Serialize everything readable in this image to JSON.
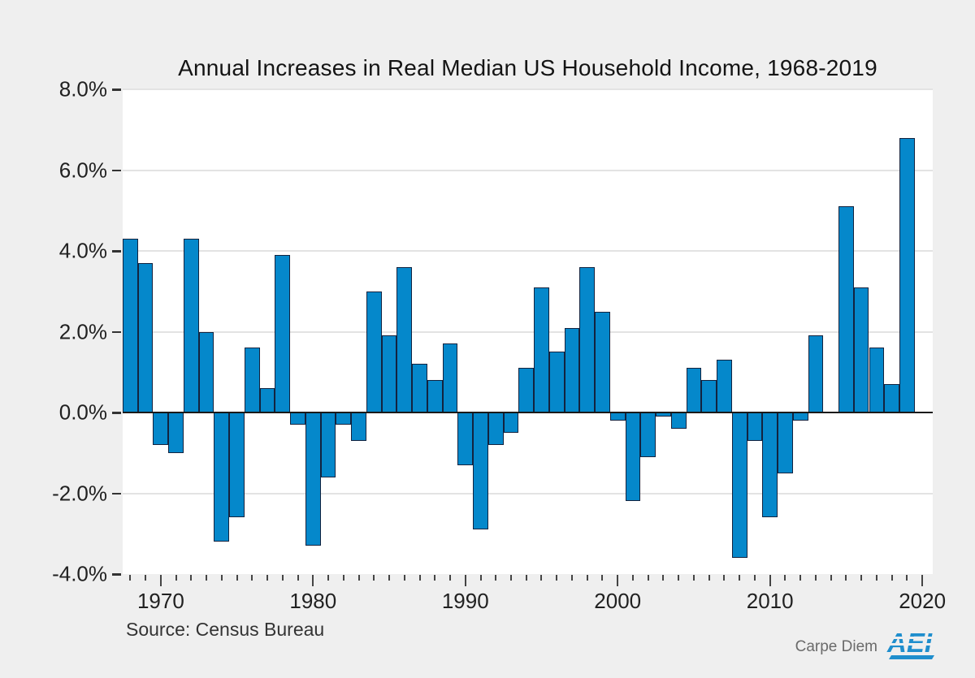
{
  "title": "Annual Increases in Real Median US Household Income, 1968-2019",
  "source": "Source: Census Bureau",
  "branding": {
    "carpe_diem": "Carpe Diem",
    "aei": "AEI"
  },
  "colors": {
    "background": "#efefef",
    "plot_background": "#ffffff",
    "bar_fill": "#0588cb",
    "bar_border": "#13233f",
    "gridline": "#e3e3e3",
    "zero_line": "#1a1a1a",
    "tick": "#333333",
    "aei_blue": "#1f8ecd",
    "carpe_gray": "#6b6b6b"
  },
  "chart_data": {
    "type": "bar",
    "title": "Annual Increases in Real Median US Household Income, 1968-2019",
    "xlabel": "",
    "ylabel": "",
    "ylim": [
      -4.0,
      8.0
    ],
    "grid": true,
    "legend_position": "none",
    "yticks": [
      8,
      6,
      4,
      2,
      0,
      -2,
      -4
    ],
    "ytick_labels": [
      "8.0%",
      "6.0%",
      "4.0%",
      "2.0%",
      "0.0%",
      "-2.0%",
      "-4.0%"
    ],
    "xtick_years_labeled": [
      1970,
      1980,
      1990,
      2000,
      2010,
      2020
    ],
    "xtick_labels": [
      "1970",
      "1980",
      "1990",
      "2000",
      "2010",
      "2020"
    ],
    "x": [
      1968,
      1969,
      1970,
      1971,
      1972,
      1973,
      1974,
      1975,
      1976,
      1977,
      1978,
      1979,
      1980,
      1981,
      1982,
      1983,
      1984,
      1985,
      1986,
      1987,
      1988,
      1989,
      1990,
      1991,
      1992,
      1993,
      1994,
      1995,
      1996,
      1997,
      1998,
      1999,
      2000,
      2001,
      2002,
      2003,
      2004,
      2005,
      2006,
      2007,
      2008,
      2009,
      2010,
      2011,
      2012,
      2013,
      2014,
      2015,
      2016,
      2017,
      2018,
      2019
    ],
    "values": [
      4.3,
      3.7,
      -0.8,
      -1.0,
      4.3,
      2.0,
      -3.2,
      -2.6,
      1.6,
      0.6,
      3.9,
      -0.3,
      -3.3,
      -1.6,
      -0.3,
      -0.7,
      3.0,
      1.9,
      3.6,
      1.2,
      0.8,
      1.7,
      -1.3,
      -2.9,
      -0.8,
      -0.5,
      1.1,
      3.1,
      1.5,
      2.1,
      3.6,
      2.5,
      -0.2,
      -2.2,
      -1.1,
      -0.1,
      -0.4,
      1.1,
      0.8,
      1.3,
      -3.6,
      -0.7,
      -2.6,
      -1.5,
      -0.2,
      1.9,
      0.0,
      5.1,
      3.1,
      1.6,
      0.7,
      6.8
    ]
  }
}
